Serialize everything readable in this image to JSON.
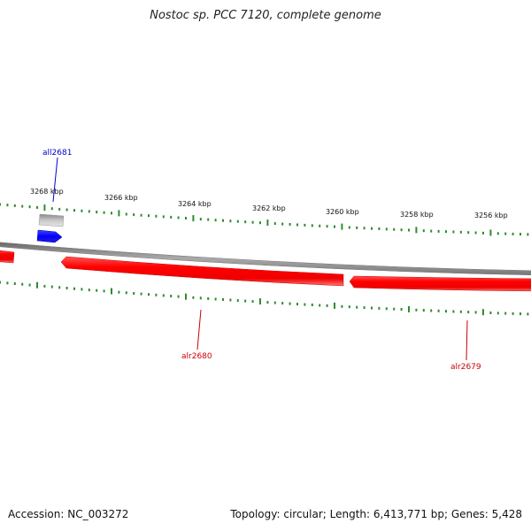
{
  "title": "Nostoc sp. PCC 7120, complete genome",
  "footer": {
    "accession": "Accession: NC_003272",
    "summary": "Topology: circular; Length: 6,413,771 bp; Genes: 5,428"
  },
  "scale_labels": [
    "3268 kbp",
    "3266 kbp",
    "3264 kbp",
    "3262 kbp",
    "3260 kbp",
    "3258 kbp",
    "3256 kbp"
  ],
  "genes": [
    {
      "name": "all2681",
      "strand": "minus",
      "color": "#0000cc"
    },
    {
      "name": "alr2680",
      "strand": "plus",
      "color": "#cc0000"
    },
    {
      "name": "alr2679",
      "strand": "plus",
      "color": "#cc0000"
    }
  ],
  "colors": {
    "backbone": "#888888",
    "tick": "#2e8b2e",
    "plus_feature": "#ff0000",
    "minus_feature": "#0000ff",
    "pseudo_feature": "#b0b0b0"
  }
}
